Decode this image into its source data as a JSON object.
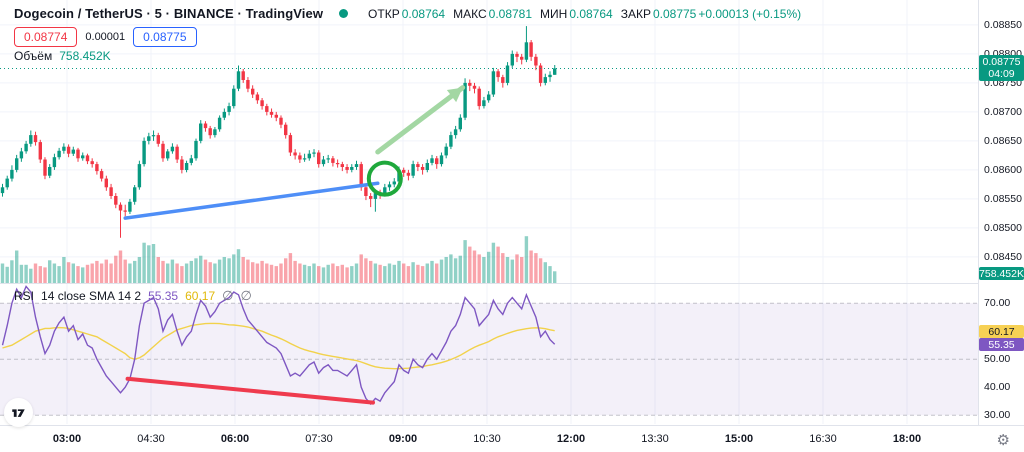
{
  "header": {
    "symbol_title": "Dogecoin / TetherUS · 5 · BINANCE · TradingView",
    "ohlc": {
      "open_label": "ОТКР",
      "open": "0.08764",
      "high_label": "МАКС",
      "high": "0.08781",
      "low_label": "МИН",
      "low": "0.08764",
      "close_label": "ЗАКР",
      "close": "0.08775",
      "change": "+0.00013 (+0.15%)"
    },
    "bid": "0.08774",
    "spread": "0.00001",
    "ask": "0.08775",
    "volume_label": "Объём",
    "volume_value": "758.452K"
  },
  "price_axis": {
    "labels": [
      "0.08850",
      "0.08800",
      "0.08750",
      "0.08700",
      "0.08650",
      "0.08600",
      "0.08550",
      "0.08500",
      "0.08450"
    ],
    "current_badge": {
      "price": "0.08775",
      "countdown": "04:09"
    },
    "volume_badge": "758.452K"
  },
  "time_axis": {
    "ticks": [
      {
        "label": "03:00",
        "bold": true
      },
      {
        "label": "04:30",
        "bold": false
      },
      {
        "label": "06:00",
        "bold": true
      },
      {
        "label": "07:30",
        "bold": false
      },
      {
        "label": "09:00",
        "bold": true
      },
      {
        "label": "10:30",
        "bold": false
      },
      {
        "label": "12:00",
        "bold": true
      },
      {
        "label": "13:30",
        "bold": false
      },
      {
        "label": "15:00",
        "bold": true
      },
      {
        "label": "16:30",
        "bold": false
      },
      {
        "label": "18:00",
        "bold": true
      }
    ],
    "gear_icon": "⚙"
  },
  "rsi_panel": {
    "title": "RSI",
    "params": "14 close SMA 14 2",
    "value_rsi": "55.35",
    "value_sma": "60.17",
    "hide_icon": "∅",
    "axis_labels": [
      "70.00",
      "60.00",
      "50.00",
      "40.00",
      "30.00"
    ],
    "badge_sma": "60.17",
    "badge_rsi": "55.35"
  },
  "colors": {
    "up": "#089981",
    "down": "#f23645",
    "vol_up": "rgba(8,153,129,0.45)",
    "vol_down": "rgba(242,54,69,0.45)",
    "accent": "#089981",
    "bid_red": "#f23645",
    "ask_blue": "#2962ff",
    "grid": "#f0f3fa",
    "separator": "#e0e3eb",
    "axis_text": "#131722",
    "trendline_blue": "#4e8ef7",
    "circle_green": "#1fa83c",
    "arrow_green": "#a3d7a3",
    "rsi_purple": "#7e57c2",
    "rsi_yellow": "#f2d24b",
    "rsi_band_fill": "rgba(126,87,194,0.09)",
    "rsi_dashed": "#9598a1",
    "rsi_red_line": "#ef3b4e",
    "badge_price_bg": "#089981",
    "badge_vol_bg": "#089981",
    "badge_sma_bg": "#f7d154",
    "badge_sma_text": "#131722",
    "badge_rsi_bg": "#7e57c2",
    "badge_rsi_text": "#ffffff"
  },
  "chart_data": {
    "type": "candlestick",
    "interval_label": "5",
    "price_scale_factor": 100000,
    "axis": {
      "price_min": 0.0845,
      "price_max": 0.0885,
      "tick_step": 0.0005,
      "rsi_levels_dashed": [
        70,
        50,
        30
      ],
      "rsi_range": [
        30,
        70
      ],
      "grid": true
    },
    "candles": [
      [
        8560,
        8576,
        8554,
        8570
      ],
      [
        8570,
        8590,
        8566,
        8585
      ],
      [
        8585,
        8608,
        8580,
        8600
      ],
      [
        8600,
        8626,
        8596,
        8620
      ],
      [
        8620,
        8638,
        8614,
        8632
      ],
      [
        8632,
        8650,
        8628,
        8645
      ],
      [
        8645,
        8668,
        8640,
        8660
      ],
      [
        8660,
        8666,
        8642,
        8648
      ],
      [
        8648,
        8652,
        8612,
        8618
      ],
      [
        8618,
        8622,
        8584,
        8590
      ],
      [
        8590,
        8610,
        8586,
        8605
      ],
      [
        8605,
        8628,
        8600,
        8622
      ],
      [
        8622,
        8638,
        8618,
        8633
      ],
      [
        8633,
        8646,
        8628,
        8640
      ],
      [
        8640,
        8644,
        8622,
        8628
      ],
      [
        8628,
        8640,
        8624,
        8635
      ],
      [
        8635,
        8638,
        8614,
        8620
      ],
      [
        8620,
        8630,
        8616,
        8625
      ],
      [
        8625,
        8628,
        8610,
        8615
      ],
      [
        8615,
        8620,
        8604,
        8610
      ],
      [
        8610,
        8614,
        8592,
        8598
      ],
      [
        8598,
        8602,
        8580,
        8585
      ],
      [
        8585,
        8590,
        8564,
        8570
      ],
      [
        8570,
        8576,
        8550,
        8555
      ],
      [
        8555,
        8560,
        8534,
        8540
      ],
      [
        8540,
        8544,
        8483,
        8530
      ],
      [
        8530,
        8540,
        8520,
        8528
      ],
      [
        8528,
        8550,
        8524,
        8545
      ],
      [
        8545,
        8574,
        8540,
        8570
      ],
      [
        8570,
        8616,
        8566,
        8610
      ],
      [
        8610,
        8656,
        8606,
        8650
      ],
      [
        8650,
        8664,
        8644,
        8658
      ],
      [
        8658,
        8668,
        8650,
        8660
      ],
      [
        8660,
        8664,
        8640,
        8645
      ],
      [
        8645,
        8650,
        8614,
        8620
      ],
      [
        8620,
        8636,
        8616,
        8632
      ],
      [
        8632,
        8646,
        8628,
        8640
      ],
      [
        8640,
        8644,
        8612,
        8618
      ],
      [
        8618,
        8624,
        8594,
        8600
      ],
      [
        8600,
        8616,
        8596,
        8612
      ],
      [
        8612,
        8626,
        8608,
        8620
      ],
      [
        8620,
        8654,
        8616,
        8650
      ],
      [
        8650,
        8686,
        8646,
        8680
      ],
      [
        8680,
        8684,
        8666,
        8672
      ],
      [
        8672,
        8676,
        8654,
        8660
      ],
      [
        8660,
        8674,
        8656,
        8670
      ],
      [
        8670,
        8694,
        8666,
        8690
      ],
      [
        8690,
        8706,
        8686,
        8700
      ],
      [
        8700,
        8716,
        8694,
        8710
      ],
      [
        8710,
        8746,
        8706,
        8740
      ],
      [
        8740,
        8780,
        8736,
        8770
      ],
      [
        8770,
        8774,
        8750,
        8755
      ],
      [
        8755,
        8760,
        8734,
        8740
      ],
      [
        8740,
        8746,
        8724,
        8730
      ],
      [
        8730,
        8734,
        8714,
        8720
      ],
      [
        8720,
        8724,
        8704,
        8710
      ],
      [
        8710,
        8714,
        8694,
        8700
      ],
      [
        8700,
        8706,
        8690,
        8695
      ],
      [
        8695,
        8700,
        8684,
        8690
      ],
      [
        8690,
        8694,
        8672,
        8678
      ],
      [
        8678,
        8682,
        8654,
        8660
      ],
      [
        8660,
        8664,
        8624,
        8630
      ],
      [
        8630,
        8636,
        8618,
        8625
      ],
      [
        8625,
        8630,
        8612,
        8618
      ],
      [
        8618,
        8628,
        8614,
        8620
      ],
      [
        8620,
        8634,
        8616,
        8628
      ],
      [
        8628,
        8636,
        8622,
        8630
      ],
      [
        8630,
        8634,
        8604,
        8610
      ],
      [
        8610,
        8624,
        8606,
        8618
      ],
      [
        8618,
        8626,
        8612,
        8620
      ],
      [
        8620,
        8624,
        8606,
        8612
      ],
      [
        8612,
        8618,
        8604,
        8610
      ],
      [
        8610,
        8614,
        8598,
        8605
      ],
      [
        8605,
        8610,
        8594,
        8600
      ],
      [
        8600,
        8610,
        8596,
        8605
      ],
      [
        8605,
        8616,
        8600,
        8610
      ],
      [
        8610,
        8614,
        8564,
        8570
      ],
      [
        8570,
        8574,
        8548,
        8555
      ],
      [
        8555,
        8560,
        8536,
        8550
      ],
      [
        8550,
        8566,
        8528,
        8560
      ],
      [
        8560,
        8566,
        8550,
        8558
      ],
      [
        8558,
        8576,
        8554,
        8570
      ],
      [
        8570,
        8580,
        8564,
        8575
      ],
      [
        8575,
        8586,
        8570,
        8580
      ],
      [
        8580,
        8606,
        8576,
        8600
      ],
      [
        8600,
        8604,
        8588,
        8595
      ],
      [
        8595,
        8600,
        8582,
        8590
      ],
      [
        8590,
        8616,
        8586,
        8610
      ],
      [
        8610,
        8614,
        8598,
        8605
      ],
      [
        8605,
        8610,
        8592,
        8600
      ],
      [
        8600,
        8618,
        8596,
        8612
      ],
      [
        8612,
        8626,
        8608,
        8620
      ],
      [
        8620,
        8624,
        8602,
        8610
      ],
      [
        8610,
        8630,
        8606,
        8625
      ],
      [
        8625,
        8646,
        8620,
        8640
      ],
      [
        8640,
        8666,
        8636,
        8660
      ],
      [
        8660,
        8676,
        8654,
        8670
      ],
      [
        8670,
        8696,
        8666,
        8690
      ],
      [
        8690,
        8758,
        8686,
        8750
      ],
      [
        8750,
        8756,
        8736,
        8745
      ],
      [
        8745,
        8750,
        8732,
        8740
      ],
      [
        8740,
        8744,
        8704,
        8710
      ],
      [
        8710,
        8726,
        8706,
        8720
      ],
      [
        8720,
        8736,
        8716,
        8730
      ],
      [
        8730,
        8776,
        8726,
        8770
      ],
      [
        8770,
        8774,
        8752,
        8760
      ],
      [
        8760,
        8764,
        8742,
        8750
      ],
      [
        8750,
        8786,
        8746,
        8780
      ],
      [
        8780,
        8806,
        8776,
        8800
      ],
      [
        8800,
        8804,
        8786,
        8795
      ],
      [
        8795,
        8800,
        8782,
        8790
      ],
      [
        8790,
        8848,
        8786,
        8820
      ],
      [
        8820,
        8824,
        8788,
        8795
      ],
      [
        8795,
        8800,
        8772,
        8780
      ],
      [
        8780,
        8784,
        8744,
        8750
      ],
      [
        8750,
        8766,
        8746,
        8760
      ],
      [
        8760,
        8770,
        8752,
        8764
      ],
      [
        8764,
        8781,
        8764,
        8775
      ]
    ],
    "volumes_rel": [
      30,
      25,
      35,
      50,
      28,
      28,
      22,
      30,
      26,
      24,
      35,
      30,
      26,
      40,
      32,
      30,
      26,
      24,
      28,
      30,
      34,
      30,
      36,
      30,
      42,
      50,
      36,
      30,
      34,
      40,
      62,
      58,
      60,
      40,
      34,
      30,
      36,
      30,
      26,
      30,
      34,
      38,
      42,
      36,
      32,
      30,
      36,
      40,
      38,
      44,
      52,
      40,
      36,
      32,
      30,
      34,
      30,
      28,
      26,
      30,
      38,
      46,
      34,
      30,
      28,
      26,
      30,
      26,
      24,
      28,
      30,
      26,
      28,
      24,
      26,
      30,
      44,
      38,
      34,
      30,
      28,
      26,
      30,
      28,
      34,
      30,
      26,
      32,
      28,
      26,
      30,
      34,
      30,
      36,
      40,
      44,
      38,
      42,
      66,
      56,
      50,
      44,
      40,
      48,
      62,
      56,
      46,
      40,
      36,
      44,
      40,
      72,
      50,
      46,
      38,
      32,
      26,
      18
    ],
    "rsi": [
      55,
      62,
      70,
      75,
      72,
      76,
      74,
      65,
      58,
      52,
      55,
      60,
      63,
      65,
      60,
      62,
      57,
      59,
      55,
      54,
      50,
      47,
      44,
      42,
      40,
      38,
      40,
      43,
      50,
      62,
      70,
      71,
      72,
      68,
      60,
      64,
      66,
      60,
      55,
      58,
      60,
      66,
      71,
      69,
      65,
      67,
      70,
      71,
      72,
      74,
      73,
      68,
      64,
      62,
      60,
      58,
      56,
      55,
      54,
      52,
      48,
      44,
      45,
      44,
      46,
      48,
      49,
      45,
      47,
      48,
      46,
      46,
      45,
      44,
      46,
      48,
      40,
      36,
      34,
      36,
      35,
      38,
      40,
      42,
      48,
      46,
      45,
      50,
      48,
      47,
      50,
      52,
      50,
      53,
      56,
      60,
      62,
      66,
      72,
      70,
      68,
      62,
      64,
      66,
      71,
      68,
      66,
      70,
      72,
      70,
      68,
      73,
      69,
      65,
      58,
      60,
      57,
      55.35
    ],
    "rsi_sma": [
      54,
      54.5,
      55,
      56,
      57,
      58,
      59,
      60,
      60.5,
      61,
      61,
      61.2,
      61.3,
      61.2,
      61,
      60.5,
      60,
      59.5,
      59,
      58.5,
      58,
      57,
      56,
      55,
      54,
      53,
      52,
      50.5,
      50,
      50.5,
      51.5,
      53,
      54.5,
      56,
      57.5,
      58.5,
      59.5,
      60.5,
      61,
      61.5,
      62,
      62.3,
      62.5,
      62.7,
      62.8,
      62.8,
      62.7,
      62.5,
      62.3,
      62.2,
      62,
      61.8,
      61.5,
      61,
      60.5,
      60,
      59.3,
      58.6,
      58,
      57.3,
      56.5,
      55.6,
      54.8,
      54,
      53.4,
      52.9,
      52.5,
      52,
      51.6,
      51.3,
      51,
      50.7,
      50.4,
      50.1,
      49.8,
      49.5,
      49,
      48.4,
      47.8,
      47.3,
      47,
      46.8,
      46.7,
      46.6,
      46.6,
      46.7,
      46.8,
      47,
      47.2,
      47.4,
      47.7,
      48,
      48.4,
      48.8,
      49.3,
      49.9,
      50.6,
      51.4,
      52.4,
      53.4,
      54.3,
      55,
      55.6,
      56.3,
      57.2,
      58,
      58.6,
      59.2,
      59.8,
      60.3,
      60.6,
      60.9,
      61.1,
      61.2,
      61.1,
      60.9,
      60.5,
      60.17
    ],
    "current_price_line": 0.08775,
    "annotations": {
      "trendline_blue": {
        "i1": 26,
        "p1": 0.08517,
        "i2": 79.5,
        "p2": 0.08577
      },
      "circle_green": {
        "i": 81,
        "p": 0.08585,
        "r": 16
      },
      "arrow_green": {
        "i1": 79.5,
        "p1": 0.08631,
        "i2": 97.5,
        "p2": 0.08742
      },
      "trendline_red_rsi": {
        "i1": 26.5,
        "v1": 43,
        "i2": 78.5,
        "v2": 34.5
      }
    }
  }
}
